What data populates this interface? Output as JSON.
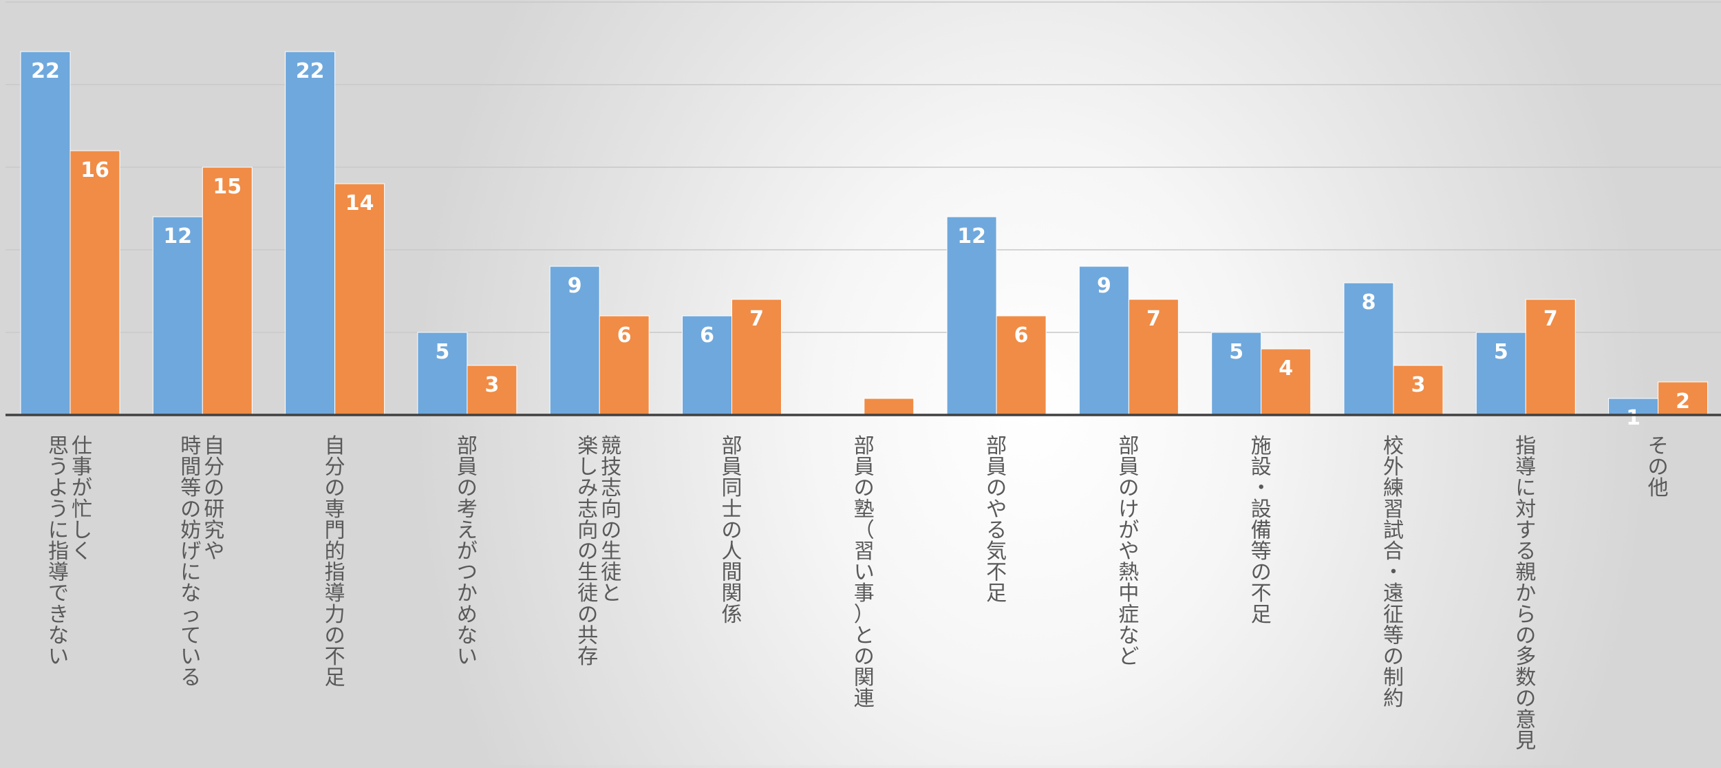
{
  "chart_data": {
    "type": "bar",
    "categories": [
      [
        "仕事が忙しく",
        "思うように指導できない"
      ],
      [
        "自分の研究や",
        "時間等の妨げになっている"
      ],
      [
        "自分の専門的指導力の不足"
      ],
      [
        "部員の考えがつかめない"
      ],
      [
        "競技志向の生徒と",
        "楽しみ志向の生徒の共存"
      ],
      [
        "部員同士の人間関係"
      ],
      [
        "部員の塾（習い事）との関連"
      ],
      [
        "部員のやる気不足"
      ],
      [
        "部員のけがや熱中症など"
      ],
      [
        "施設・設備等の不足"
      ],
      [
        "校外練習試合・遠征等の制約"
      ],
      [
        "指導に対する親からの多数の意見"
      ],
      [
        "その他"
      ]
    ],
    "series": [
      {
        "values": [
          22,
          12,
          22,
          5,
          9,
          6,
          0,
          12,
          9,
          5,
          8,
          5,
          1
        ],
        "color": "#6fa8dc",
        "labels": [
          "22",
          "12",
          "22",
          "5",
          "9",
          "6",
          "",
          "12",
          "9",
          "5",
          "8",
          "5",
          "1"
        ]
      },
      {
        "values": [
          16,
          15,
          14,
          3,
          6,
          7,
          1,
          6,
          7,
          4,
          3,
          7,
          2
        ],
        "color": "#f08c46",
        "labels": [
          "16",
          "15",
          "14",
          "3",
          "6",
          "7",
          "",
          "6",
          "7",
          "4",
          "3",
          "7",
          "2"
        ]
      }
    ],
    "ylim": [
      0,
      25
    ],
    "y_gridlines": [
      5,
      10,
      15,
      20,
      25
    ],
    "grid": true,
    "legend": "none",
    "xlabel": "",
    "ylabel": "",
    "title": ""
  }
}
